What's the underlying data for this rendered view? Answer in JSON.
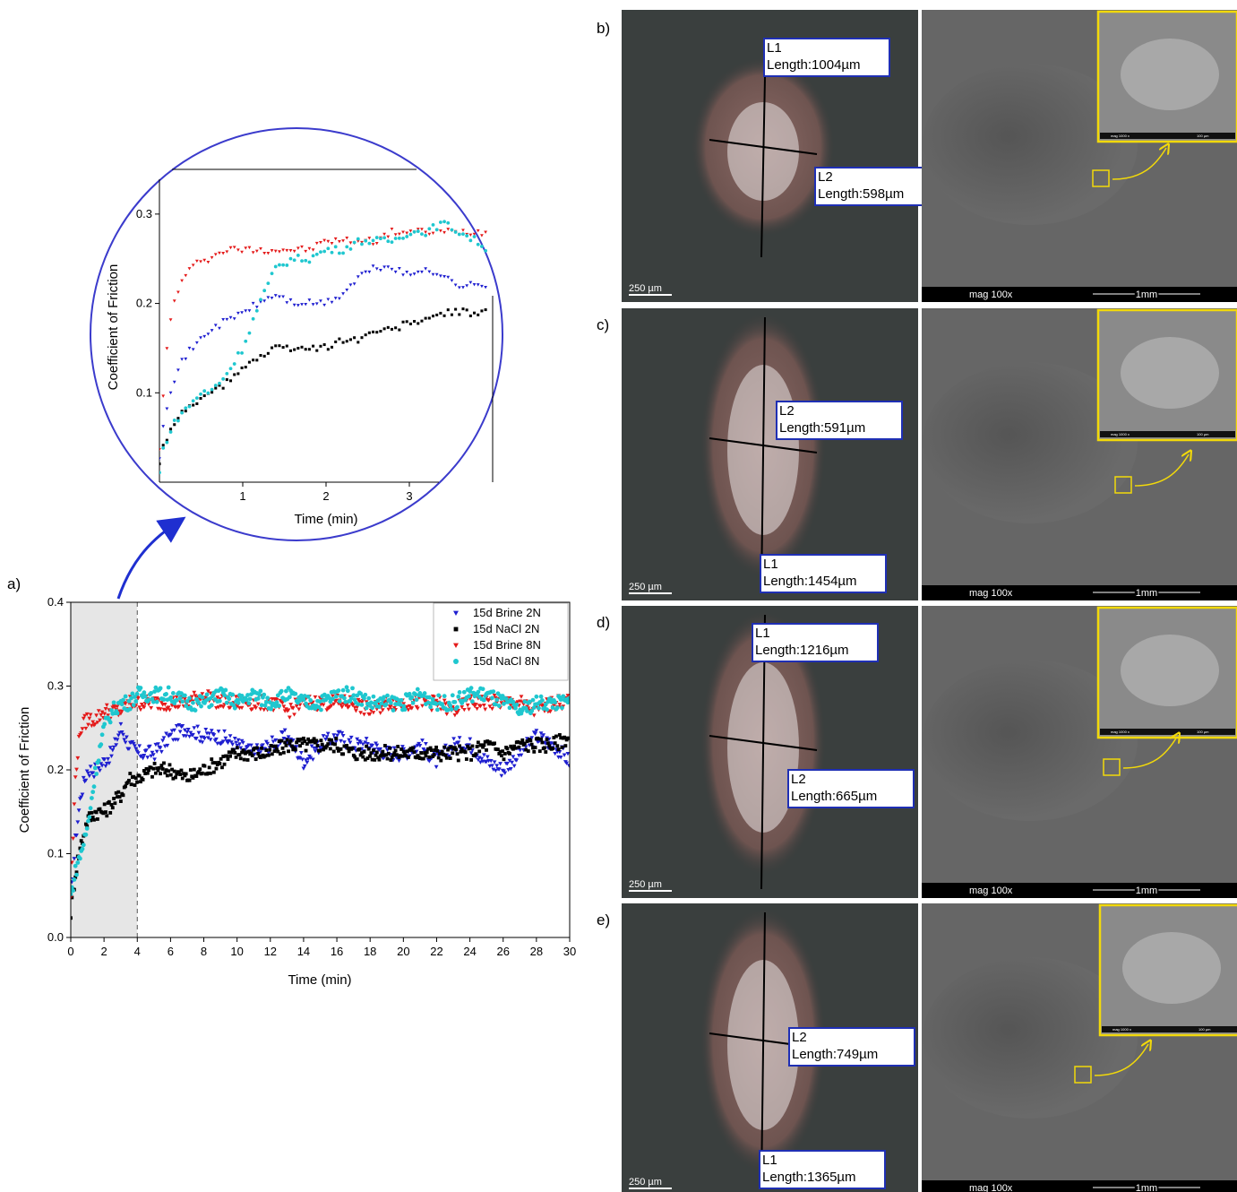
{
  "panel_labels": [
    "a)",
    "b)",
    "c)",
    "d)",
    "e)"
  ],
  "colors": {
    "brine2": "#1f1fd0",
    "nacl2": "#000000",
    "brine8": "#e41a1a",
    "nacl8": "#1fc7cf",
    "zoom_circle": "#3b3bcc",
    "measure_box": "#1f2fb4",
    "sem_inset": "#f2d90a"
  },
  "chart_data": [
    {
      "type": "scatter",
      "title": "",
      "xlabel": "Time (min)",
      "ylabel": "Coefficient of Friction",
      "xlim": [
        0,
        30
      ],
      "ylim": [
        0,
        0.4
      ],
      "xticks": [
        "0",
        "2",
        "4",
        "6",
        "8",
        "10",
        "12",
        "14",
        "16",
        "18",
        "20",
        "22",
        "24",
        "26",
        "28",
        "30"
      ],
      "yticks": [
        "0.0",
        "0.1",
        "0.2",
        "0.3",
        "0.4"
      ],
      "shaded_region": [
        0,
        4
      ],
      "legend_position": "top-right",
      "grid": false,
      "series": [
        {
          "name": "15d Brine 2N",
          "marker": "triangle-down",
          "color_key": "brine2",
          "x": [
            0,
            0.3,
            0.6,
            1,
            1.5,
            2,
            2.5,
            3,
            3.5,
            4,
            5,
            6,
            7,
            8,
            9,
            10,
            11,
            12,
            13,
            14,
            15,
            16,
            17,
            18,
            19,
            20,
            21,
            22,
            23,
            24,
            25,
            26,
            27,
            28,
            29,
            30
          ],
          "y": [
            0.04,
            0.12,
            0.17,
            0.2,
            0.2,
            0.21,
            0.22,
            0.25,
            0.23,
            0.22,
            0.22,
            0.24,
            0.25,
            0.24,
            0.24,
            0.23,
            0.22,
            0.23,
            0.24,
            0.21,
            0.23,
            0.24,
            0.23,
            0.23,
            0.22,
            0.22,
            0.23,
            0.21,
            0.23,
            0.23,
            0.21,
            0.2,
            0.22,
            0.24,
            0.23,
            0.21
          ]
        },
        {
          "name": "15d NaCl 2N",
          "marker": "square",
          "color_key": "nacl2",
          "x": [
            0,
            0.3,
            0.6,
            1,
            1.5,
            2,
            2.5,
            3,
            3.5,
            4,
            5,
            6,
            7,
            8,
            9,
            10,
            11,
            12,
            13,
            14,
            15,
            16,
            17,
            18,
            19,
            20,
            21,
            22,
            23,
            24,
            25,
            26,
            27,
            28,
            29,
            30
          ],
          "y": [
            0.03,
            0.08,
            0.11,
            0.14,
            0.15,
            0.15,
            0.16,
            0.17,
            0.19,
            0.19,
            0.2,
            0.2,
            0.19,
            0.2,
            0.21,
            0.22,
            0.22,
            0.22,
            0.23,
            0.23,
            0.23,
            0.23,
            0.22,
            0.22,
            0.22,
            0.22,
            0.22,
            0.22,
            0.22,
            0.22,
            0.23,
            0.22,
            0.23,
            0.23,
            0.23,
            0.24
          ]
        },
        {
          "name": "15d Brine 8N",
          "marker": "triangle-down",
          "color_key": "brine8",
          "x": [
            0,
            0.3,
            0.6,
            1,
            1.5,
            2,
            2.5,
            3,
            3.5,
            4,
            5,
            6,
            7,
            8,
            9,
            10,
            11,
            12,
            13,
            14,
            15,
            16,
            17,
            18,
            19,
            20,
            21,
            22,
            23,
            24,
            25,
            26,
            27,
            28,
            29,
            30
          ],
          "y": [
            0.05,
            0.2,
            0.25,
            0.26,
            0.26,
            0.27,
            0.27,
            0.27,
            0.28,
            0.28,
            0.28,
            0.28,
            0.28,
            0.29,
            0.28,
            0.28,
            0.28,
            0.28,
            0.27,
            0.28,
            0.28,
            0.28,
            0.28,
            0.27,
            0.28,
            0.28,
            0.28,
            0.28,
            0.27,
            0.28,
            0.28,
            0.28,
            0.28,
            0.27,
            0.28,
            0.28
          ]
        },
        {
          "name": "15d NaCl 8N",
          "marker": "circle",
          "color_key": "nacl8",
          "x": [
            0,
            0.3,
            0.6,
            1,
            1.5,
            2,
            2.5,
            3,
            3.5,
            4,
            5,
            6,
            7,
            8,
            9,
            10,
            11,
            12,
            13,
            14,
            15,
            16,
            17,
            18,
            19,
            20,
            21,
            22,
            23,
            24,
            25,
            26,
            27,
            28,
            29,
            30
          ],
          "y": [
            0.05,
            0.08,
            0.1,
            0.13,
            0.2,
            0.25,
            0.27,
            0.28,
            0.28,
            0.29,
            0.29,
            0.29,
            0.28,
            0.28,
            0.29,
            0.28,
            0.29,
            0.28,
            0.29,
            0.28,
            0.28,
            0.29,
            0.29,
            0.28,
            0.28,
            0.28,
            0.29,
            0.28,
            0.28,
            0.29,
            0.29,
            0.28,
            0.27,
            0.28,
            0.28,
            0.28
          ]
        }
      ]
    },
    {
      "type": "scatter",
      "title": "",
      "xlabel": "Time (min)",
      "ylabel": "Coefficient of Friction",
      "xlim": [
        0,
        4
      ],
      "ylim": [
        0,
        0.35
      ],
      "xticks": [
        "1",
        "2",
        "3"
      ],
      "yticks": [
        "0.1",
        "0.2",
        "0.3"
      ],
      "series": [
        {
          "color_key": "brine2",
          "x": [
            0,
            0.05,
            0.1,
            0.15,
            0.2,
            0.3,
            0.4,
            0.5,
            0.6,
            0.8,
            1.0,
            1.2,
            1.4,
            1.6,
            1.8,
            2.0,
            2.2,
            2.4,
            2.6,
            2.8,
            3.0,
            3.2,
            3.4,
            3.6,
            3.8,
            3.95
          ],
          "y": [
            0.03,
            0.07,
            0.09,
            0.11,
            0.12,
            0.14,
            0.15,
            0.16,
            0.17,
            0.18,
            0.19,
            0.2,
            0.21,
            0.2,
            0.2,
            0.2,
            0.21,
            0.23,
            0.24,
            0.24,
            0.23,
            0.24,
            0.23,
            0.22,
            0.22,
            0.22
          ]
        },
        {
          "color_key": "nacl2",
          "x": [
            0,
            0.05,
            0.1,
            0.15,
            0.2,
            0.3,
            0.4,
            0.5,
            0.6,
            0.8,
            1.0,
            1.2,
            1.4,
            1.6,
            1.8,
            2.0,
            2.2,
            2.4,
            2.6,
            2.8,
            3.0,
            3.2,
            3.4,
            3.6,
            3.8,
            3.95
          ],
          "y": [
            0.02,
            0.04,
            0.05,
            0.06,
            0.07,
            0.08,
            0.09,
            0.09,
            0.1,
            0.11,
            0.13,
            0.14,
            0.15,
            0.15,
            0.15,
            0.15,
            0.16,
            0.16,
            0.17,
            0.17,
            0.18,
            0.18,
            0.19,
            0.19,
            0.19,
            0.19
          ]
        },
        {
          "color_key": "brine8",
          "x": [
            0,
            0.05,
            0.1,
            0.15,
            0.2,
            0.3,
            0.4,
            0.5,
            0.6,
            0.8,
            1.0,
            1.2,
            1.4,
            1.6,
            1.8,
            2.0,
            2.2,
            2.4,
            2.6,
            2.8,
            3.0,
            3.2,
            3.4,
            3.6,
            3.8,
            3.95
          ],
          "y": [
            0.04,
            0.1,
            0.16,
            0.19,
            0.21,
            0.23,
            0.24,
            0.25,
            0.25,
            0.26,
            0.26,
            0.26,
            0.26,
            0.26,
            0.26,
            0.27,
            0.27,
            0.27,
            0.27,
            0.28,
            0.28,
            0.28,
            0.28,
            0.28,
            0.28,
            0.28
          ]
        },
        {
          "color_key": "nacl8",
          "x": [
            0,
            0.05,
            0.1,
            0.15,
            0.2,
            0.3,
            0.4,
            0.5,
            0.6,
            0.8,
            1.0,
            1.2,
            1.4,
            1.6,
            1.8,
            2.0,
            2.2,
            2.4,
            2.6,
            2.8,
            3.0,
            3.2,
            3.4,
            3.6,
            3.8,
            3.95
          ],
          "y": [
            0.01,
            0.04,
            0.05,
            0.06,
            0.07,
            0.08,
            0.09,
            0.1,
            0.1,
            0.12,
            0.15,
            0.2,
            0.24,
            0.25,
            0.25,
            0.26,
            0.26,
            0.27,
            0.27,
            0.27,
            0.28,
            0.28,
            0.29,
            0.28,
            0.27,
            0.26
          ]
        }
      ]
    }
  ],
  "measurements": [
    {
      "panel": "b)",
      "l1": "L1",
      "l1_len": "Length:1004µm",
      "l2": "L2",
      "l2_len": "Length:598µm",
      "scale": "250 µm"
    },
    {
      "panel": "c)",
      "l1": "L1",
      "l1_len": "Length:1454µm",
      "l2": "L2",
      "l2_len": "Length:591µm",
      "scale": "250 µm"
    },
    {
      "panel": "d)",
      "l1": "L1",
      "l1_len": "Length:1216µm",
      "l2": "L2",
      "l2_len": "Length:665µm",
      "scale": "250 µm"
    },
    {
      "panel": "e)",
      "l1": "L1",
      "l1_len": "Length:1365µm",
      "l2": "L2",
      "l2_len": "Length:749µm",
      "scale": "250 µm"
    }
  ],
  "sem": {
    "mag": "mag 100x",
    "bar": "1mm",
    "inset_mag": "mag 1000 x",
    "inset_bar": "100 µm"
  }
}
